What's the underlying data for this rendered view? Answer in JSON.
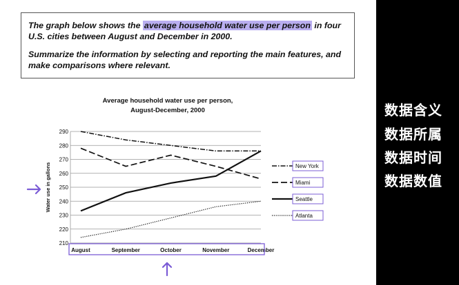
{
  "task": {
    "part1_before": "The graph below shows the ",
    "part1_highlight": "average household water use per person",
    "part1_after": " in four U.S. cities between August and December in 2000.",
    "part2": "Summarize the information by selecting and reporting the main features, and make comparisons where relevant."
  },
  "side_labels": [
    "数据含义",
    "数据所属",
    "数据时间",
    "数据数值"
  ],
  "colors": {
    "highlight": "#b9aef0",
    "annotation_purple": "#7b5cd6",
    "background": "#000000"
  },
  "icons": {
    "y_axis_arrow": "arrow-right-icon",
    "x_axis_arrow": "arrow-up-icon"
  },
  "chart_data": {
    "type": "line",
    "title_line1": "Average household water use per person,",
    "title_line2": "August-December, 2000",
    "xlabel": "",
    "ylabel": "Water use in gallons",
    "categories": [
      "August",
      "September",
      "October",
      "November",
      "December"
    ],
    "ylim": [
      210,
      290
    ],
    "yticks": [
      210,
      220,
      230,
      240,
      250,
      260,
      270,
      280,
      290
    ],
    "grid": true,
    "legend_position": "right",
    "series": [
      {
        "name": "New York",
        "style": "dash-dot",
        "values": [
          290,
          284,
          280,
          276,
          276
        ]
      },
      {
        "name": "Miami",
        "style": "dashed",
        "values": [
          278,
          265,
          273,
          265,
          256
        ]
      },
      {
        "name": "Seattle",
        "style": "solid",
        "values": [
          233,
          246,
          253,
          258,
          276
        ]
      },
      {
        "name": "Atlanta",
        "style": "dotted",
        "values": [
          214,
          220,
          228,
          236,
          240
        ]
      }
    ]
  }
}
